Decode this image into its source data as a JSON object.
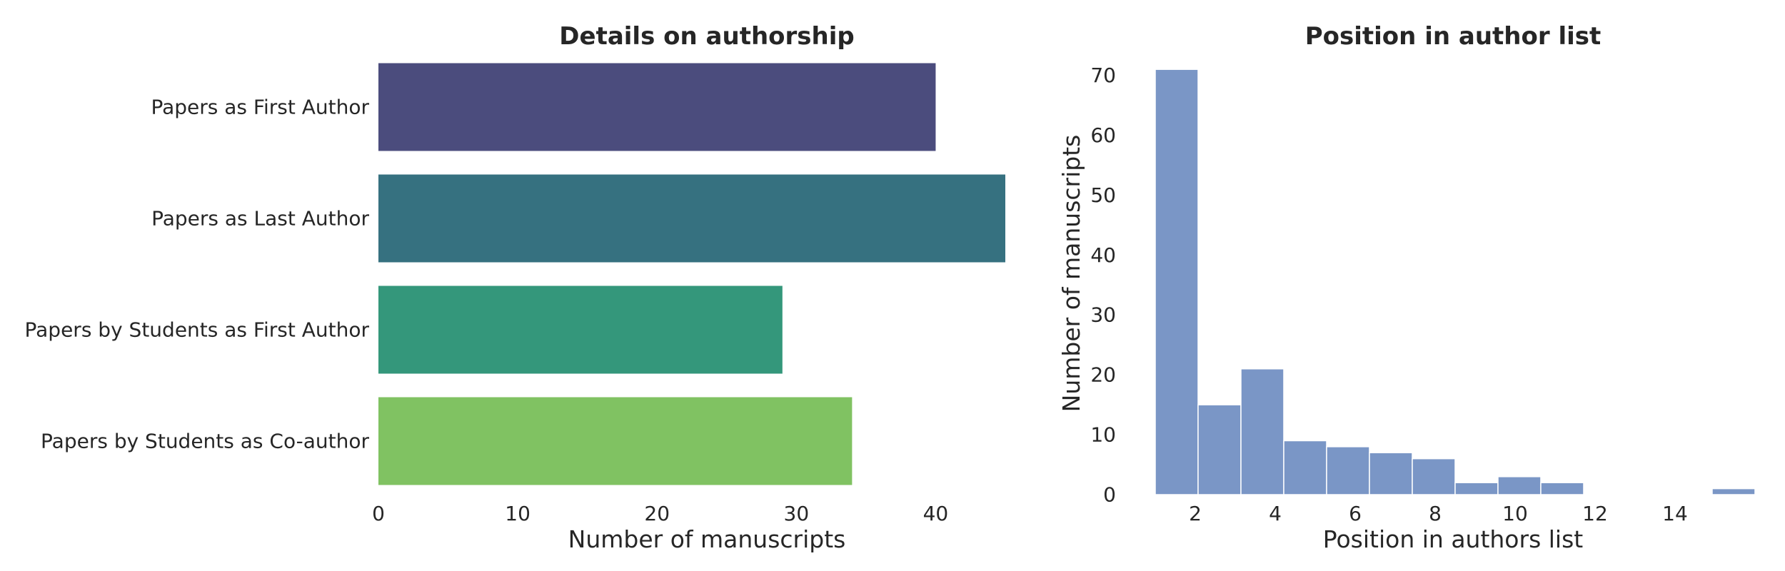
{
  "chart_data": [
    {
      "type": "bar",
      "orientation": "horizontal",
      "title": "Details on authorship",
      "xlabel": "Number of manuscripts",
      "ylabel": "",
      "categories": [
        "Papers as First Author",
        "Papers as Last Author",
        "Papers by Students as First Author",
        "Papers by Students as Co-author"
      ],
      "values": [
        40,
        45,
        29,
        34
      ],
      "colors": [
        "#4b4c7d",
        "#367180",
        "#34977b",
        "#80c262"
      ],
      "xlim": [
        0,
        45
      ],
      "xticks": [
        "0",
        "10",
        "20",
        "30",
        "40"
      ],
      "grid": false
    },
    {
      "type": "histogram",
      "title": "Position in author list",
      "xlabel": "Position in authors list",
      "ylabel": "Number of manuscripts",
      "bin_start": 1,
      "bin_width": 1.0714,
      "values": [
        71,
        15,
        21,
        9,
        8,
        7,
        6,
        2,
        3,
        2,
        0,
        0,
        0,
        1
      ],
      "color": "#7a96c6",
      "xlim": [
        1,
        16
      ],
      "ylim": [
        0,
        74
      ],
      "xticks": [
        "2",
        "4",
        "6",
        "8",
        "10",
        "12",
        "14"
      ],
      "yticks": [
        "0",
        "10",
        "20",
        "30",
        "40",
        "50",
        "60",
        "70"
      ],
      "grid": false
    }
  ]
}
